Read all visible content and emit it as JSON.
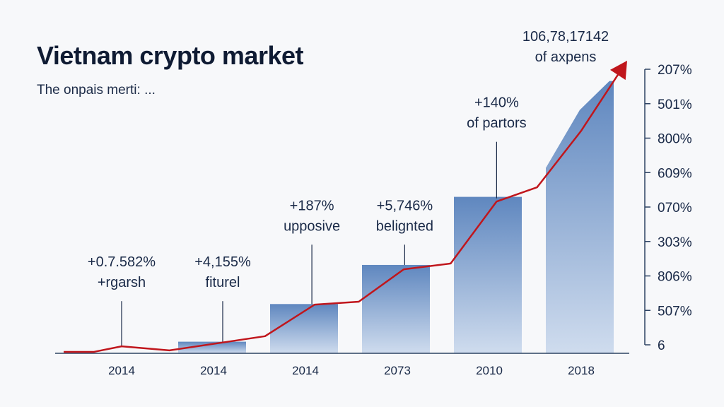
{
  "chart_data": {
    "type": "bar",
    "title": "Vietnam crypto market",
    "subtitle": "The onpais merti: ...",
    "categories": [
      "2014",
      "2014",
      "2014",
      "2073",
      "2010",
      "2018"
    ],
    "bars": [
      {
        "category_index": 1,
        "value": 4
      },
      {
        "category_index": 2,
        "value": 17
      },
      {
        "category_index": 3,
        "value": 30.5
      },
      {
        "category_index": 4,
        "value": 54
      },
      {
        "category_index": 5,
        "value": 94,
        "left_value": 64
      }
    ],
    "line": {
      "color": "#c0161c",
      "points": [
        [
          -0.63,
          0.5
        ],
        [
          -0.3,
          0.5
        ],
        [
          0,
          2.4
        ],
        [
          0.52,
          1
        ],
        [
          1.56,
          5.9
        ],
        [
          2.1,
          16.8
        ],
        [
          2.58,
          17.8
        ],
        [
          3.07,
          29
        ],
        [
          3.58,
          31
        ],
        [
          4.08,
          52.4
        ],
        [
          4.52,
          57.3
        ],
        [
          5,
          76.8
        ],
        [
          5.5,
          101
        ]
      ],
      "arrow": true
    },
    "y_tick_labels": [
      "207%",
      "501%",
      "800%",
      "609%",
      "070%",
      "303%",
      "806%",
      "507%",
      "6"
    ],
    "ylim": [
      0,
      100
    ],
    "annotations": [
      {
        "value_label": "+0.7.582%",
        "text": "+rgarsh",
        "x": 0,
        "line_top": 18,
        "line_bottom": 2.5
      },
      {
        "value_label": "+4,155%",
        "text": "fiturel",
        "x": 1.1,
        "line_top": 18,
        "line_bottom": 4
      },
      {
        "value_label": "+187%",
        "text": "upposive",
        "x": 2.07,
        "line_top": 37.5,
        "line_bottom": 17
      },
      {
        "value_label": "+5,746%",
        "text": "belignted",
        "x": 3.08,
        "line_top": 37.5,
        "line_bottom": 30.5
      },
      {
        "value_label": "+140%",
        "text": "of partors",
        "x": 4.08,
        "line_top": 73,
        "line_bottom": 53.5
      },
      {
        "value_label": "106,78,17142",
        "text": "of axpens",
        "x": 5.0,
        "line_top": null,
        "line_bottom": null
      }
    ],
    "colors": {
      "bar_top": "#5f87bf",
      "bar_bottom": "#c7d6ea",
      "axis": "#2d4263",
      "line": "#c0161c"
    },
    "grid": false,
    "legend": "none"
  }
}
